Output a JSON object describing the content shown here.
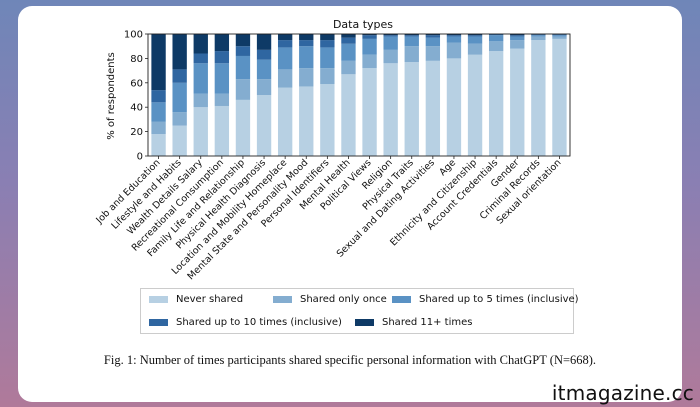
{
  "caption": "Fig. 1: Number of times participants shared specific personal information with ChatGPT (N=668).",
  "watermark": "itmagazine.cc",
  "chart_data": {
    "type": "bar",
    "stacked": true,
    "title": "Data types",
    "xlabel": "",
    "ylabel": "% of respondents",
    "ylim": [
      0,
      100
    ],
    "yticks": [
      0,
      20,
      40,
      60,
      80,
      100
    ],
    "grid": false,
    "legend_position": "bottom",
    "categories": [
      "Job and Education",
      "Lifestyle and Habits",
      "Wealth Details Salary",
      "Recreational Consumption",
      "Family Life and Relationship",
      "Physical Health Diagnosis",
      "Location and Mobility Homeplace",
      "Mental State and Personality Mood",
      "Personal Identifiers",
      "Mental Health",
      "Political Views",
      "Religion",
      "Physical Traits",
      "Sexual and Dating Activities",
      "Age",
      "Ethnicity and Citizenship",
      "Account Credentials",
      "Gender",
      "Criminal Records",
      "Sexual orientation"
    ],
    "series": [
      {
        "name": "Never shared",
        "color": "#b7d0e3",
        "values": [
          18,
          25,
          40,
          41,
          46,
          50,
          56,
          57,
          59,
          67,
          72,
          76,
          77,
          78,
          80,
          83,
          86,
          88,
          95,
          96
        ]
      },
      {
        "name": "Shared only once",
        "color": "#84add0",
        "values": [
          10,
          11,
          11,
          10,
          17,
          13,
          15,
          15,
          13,
          11,
          11,
          11,
          13,
          12,
          13,
          9,
          8,
          7,
          3,
          2
        ]
      },
      {
        "name": "Shared up to 5 times (inclusive)",
        "color": "#5a92c4",
        "values": [
          16,
          24,
          25,
          25,
          19,
          16,
          18,
          18,
          17,
          14,
          13,
          11,
          8,
          7,
          5,
          6,
          5,
          3,
          1,
          1
        ]
      },
      {
        "name": "Shared up to 10 times (inclusive)",
        "color": "#2f66a1",
        "values": [
          10,
          11,
          8,
          10,
          8,
          8,
          6,
          5,
          6,
          5,
          3,
          1,
          1,
          2,
          1,
          1,
          1,
          1,
          0.5,
          0.5
        ]
      },
      {
        "name": "Shared 11+ times",
        "color": "#0e3a66",
        "values": [
          46,
          29,
          16,
          14,
          10,
          13,
          5,
          5,
          5,
          3,
          1,
          1,
          1,
          1,
          1,
          1,
          0,
          1,
          0.5,
          0.5
        ]
      }
    ]
  }
}
